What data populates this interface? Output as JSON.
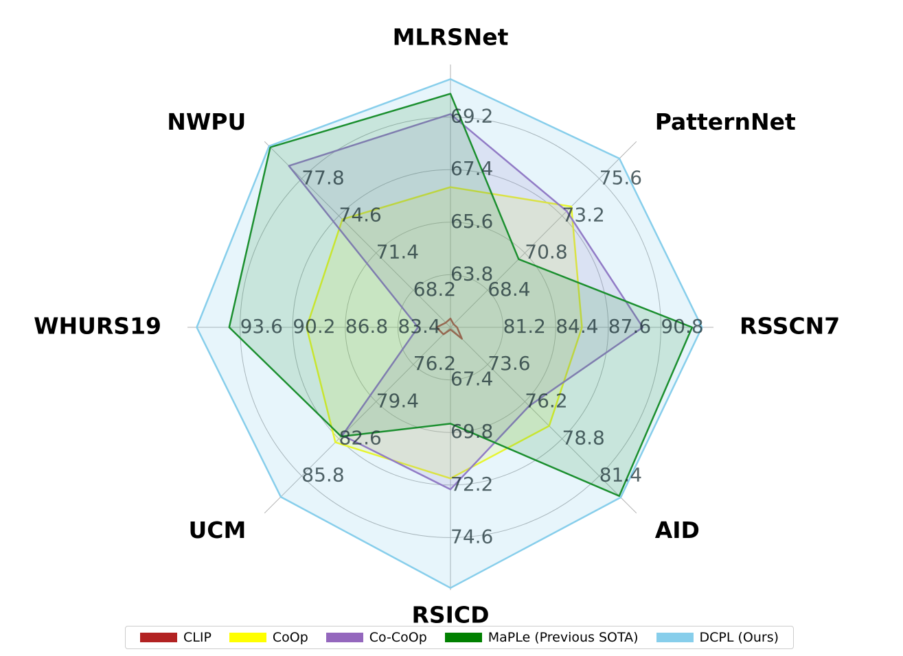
{
  "chart_data": {
    "type": "radar",
    "axes": [
      "MLRSNet",
      "PatternNet",
      "RSSCN7",
      "AID",
      "RSICD",
      "UCM",
      "WHURS19",
      "NWPU"
    ],
    "axis_ticks": [
      [
        "63.8",
        "65.6",
        "67.4",
        "69.2"
      ],
      [
        "68.4",
        "70.8",
        "73.2",
        "75.6"
      ],
      [
        "81.2",
        "84.4",
        "87.6",
        "90.8"
      ],
      [
        "73.6",
        "76.2",
        "78.8",
        "81.4"
      ],
      [
        "67.4",
        "69.8",
        "72.2",
        "74.6"
      ],
      [
        "76.2",
        "79.4",
        "82.6",
        "85.8"
      ],
      [
        "83.4",
        "86.8",
        "90.2",
        "93.6"
      ],
      [
        "68.2",
        "71.4",
        "74.6",
        "77.8"
      ]
    ],
    "axis_ranges": [
      [
        62.0,
        71.0
      ],
      [
        66.0,
        78.0
      ],
      [
        78.0,
        94.0
      ],
      [
        71.0,
        84.0
      ],
      [
        65.0,
        77.0
      ],
      [
        73.0,
        89.0
      ],
      [
        80.0,
        97.0
      ],
      [
        65.0,
        81.0
      ]
    ],
    "series": [
      {
        "name": "CLIP",
        "color": "#b22222",
        "fill_opacity": 0.06,
        "values": [
          62.3,
          66.2,
          78.4,
          71.8,
          65.1,
          73.6,
          80.9,
          65.4
        ]
      },
      {
        "name": "CoOp",
        "color": "#ffff00",
        "fill_opacity": 0.15,
        "values": [
          66.8,
          73.8,
          86.0,
          77.9,
          71.9,
          82.9,
          89.3,
          74.3
        ]
      },
      {
        "name": "Co-CoOp",
        "color": "#9467bd",
        "fill_opacity": 0.15,
        "values": [
          69.3,
          73.5,
          89.7,
          76.5,
          72.4,
          82.3,
          82.1,
          78.9
        ]
      },
      {
        "name": "MaPLe (Previous SOTA)",
        "color": "#008000",
        "fill_opacity": 0.15,
        "values": [
          70.0,
          70.4,
          92.7,
          82.8,
          69.4,
          82.4,
          94.3,
          80.5
        ]
      },
      {
        "name": "DCPL (Ours)",
        "color": "#87ceeb",
        "fill_opacity": 0.2,
        "values": [
          70.5,
          76.9,
          93.3,
          82.9,
          76.9,
          87.6,
          96.4,
          80.6
        ]
      }
    ],
    "grid": true,
    "legend_position": "bottom"
  }
}
